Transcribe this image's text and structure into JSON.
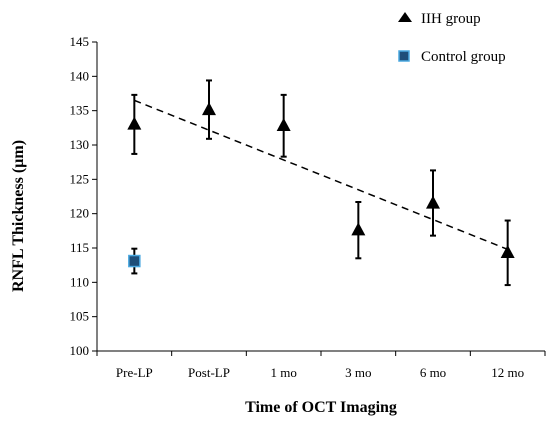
{
  "chart_data": {
    "type": "scatter",
    "categories": [
      "Pre-LP",
      "Post-LP",
      "1 mo",
      "3 mo",
      "6 mo",
      "12 mo"
    ],
    "xlabel": "Time of OCT Imaging",
    "ylabel": "RNFL Thickness (µm)",
    "ylim": [
      100,
      145
    ],
    "yticks": [
      100,
      105,
      110,
      115,
      120,
      125,
      130,
      135,
      140,
      145
    ],
    "grid": false,
    "legend_position": "top-right",
    "series": [
      {
        "name": "IIH group",
        "marker": "triangle",
        "color": "#000000",
        "values": [
          133.0,
          135.1,
          132.8,
          117.6,
          121.5,
          114.3
        ],
        "error_low": [
          128.7,
          130.9,
          128.3,
          113.5,
          116.8,
          109.6
        ],
        "error_high": [
          137.3,
          139.4,
          137.3,
          121.7,
          126.3,
          119.0
        ]
      },
      {
        "name": "Control group",
        "marker": "square",
        "color": "#1f4e79",
        "edge_color": "#4aa8e0",
        "x_index": 0,
        "values": [
          113.1
        ],
        "error_low": [
          111.3
        ],
        "error_high": [
          114.9
        ]
      }
    ],
    "trendline": {
      "style": "dashed",
      "color": "#000000",
      "from": {
        "category": "Pre-LP",
        "y": 136.5
      },
      "to": {
        "category": "12 mo",
        "y": 114.8
      }
    }
  }
}
